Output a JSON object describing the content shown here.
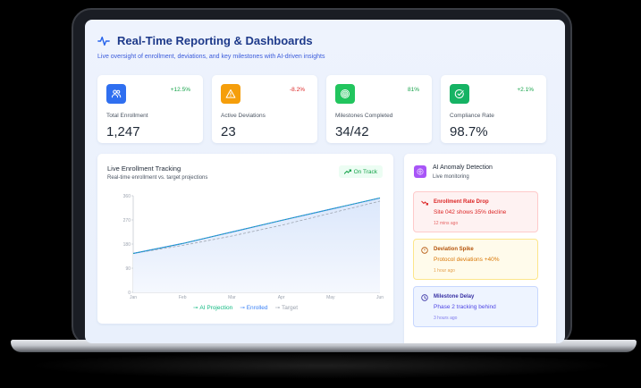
{
  "header": {
    "title": "Real-Time Reporting & Dashboards",
    "subtitle": "Live oversight of enrollment, deviations, and key milestones with AI-driven insights",
    "icon": "activity-pulse-icon"
  },
  "kpis": [
    {
      "label": "Total Enrollment",
      "value": "1,247",
      "change": "+12.5%",
      "change_color": "#16a34a",
      "icon": "users-icon",
      "icon_bg": "#2f6ff0"
    },
    {
      "label": "Active Deviations",
      "value": "23",
      "change": "-8.2%",
      "change_color": "#dc2626",
      "icon": "warning-triangle-icon",
      "icon_bg": "#f59e0b"
    },
    {
      "label": "Milestones Completed",
      "value": "34/42",
      "change": "81%",
      "change_color": "#16a34a",
      "icon": "target-icon",
      "icon_bg": "#22c55e"
    },
    {
      "label": "Compliance Rate",
      "value": "98.7%",
      "change": "+2.1%",
      "change_color": "#16a34a",
      "icon": "check-circle-icon",
      "icon_bg": "#16b364"
    }
  ],
  "chart_card": {
    "title": "Live Enrollment Tracking",
    "subtitle": "Real-time enrollment vs. target projections",
    "badge": "On Track",
    "badge_icon": "trending-up-icon"
  },
  "chart_data": {
    "type": "line",
    "title": "Live Enrollment Tracking",
    "subtitle": "Real-time enrollment vs. target projections",
    "x": [
      "Jan",
      "Feb",
      "Mar",
      "Apr",
      "May",
      "Jun"
    ],
    "yticks": [
      0,
      90,
      180,
      270,
      360
    ],
    "ylim": [
      0,
      360
    ],
    "grid": false,
    "legend_position": "bottom",
    "series": [
      {
        "name": "AI Projection",
        "color": "#10b981",
        "values": [
          145,
          182,
          225,
          268,
          310,
          352
        ]
      },
      {
        "name": "Enrolled",
        "color": "#3b82f6",
        "values": [
          145,
          182,
          225,
          268,
          310,
          352
        ]
      },
      {
        "name": "Target",
        "color": "#9ca3af",
        "values": [
          145,
          175,
          210,
          250,
          295,
          340
        ]
      }
    ]
  },
  "anomaly_panel": {
    "title": "AI Anomaly Detection",
    "subtitle": "Live monitoring",
    "icon": "ai-brain-icon",
    "alerts": [
      {
        "title": "Enrollment Rate Drop",
        "desc": "Site 042 shows 35% decline",
        "time": "12 mins ago",
        "icon": "trending-down-icon",
        "color": "#dc2626",
        "bg": "#fef2f2",
        "border": "#fecaca"
      },
      {
        "title": "Deviation Spike",
        "desc": "Protocol deviations +40%",
        "time": "1 hour ago",
        "icon": "alert-circle-icon",
        "color": "#d97706",
        "bg": "#fffbeb",
        "border": "#fde68a"
      },
      {
        "title": "Milestone Delay",
        "desc": "Phase 2 tracking behind",
        "time": "3 hours ago",
        "icon": "clock-icon",
        "color": "#4f46e5",
        "bg": "#eef4ff",
        "border": "#c7d7fe"
      }
    ]
  }
}
